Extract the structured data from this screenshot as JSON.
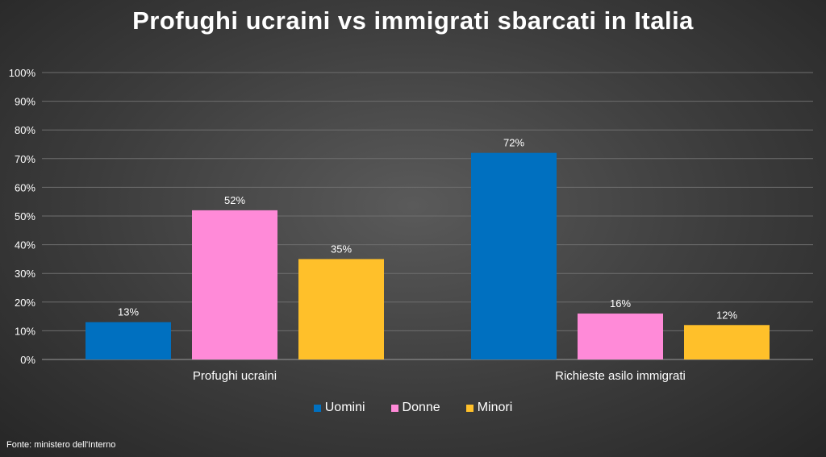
{
  "chart_data": {
    "type": "bar",
    "title": "Profughi ucraini vs immigrati sbarcati in Italia",
    "categories": [
      "Profughi ucraini",
      "Richieste asilo immigrati"
    ],
    "series": [
      {
        "name": "Uomini",
        "values": [
          13,
          72
        ],
        "labels": [
          "13%",
          "72%"
        ],
        "color": "#0070C0"
      },
      {
        "name": "Donne",
        "values": [
          52,
          16
        ],
        "labels": [
          "52%",
          "16%"
        ],
        "color": "#FF8AD8"
      },
      {
        "name": "Minori",
        "values": [
          35,
          12
        ],
        "labels": [
          "35%",
          "12%"
        ],
        "color": "#FFC02A"
      }
    ],
    "yticks": [
      "0%",
      "10%",
      "20%",
      "30%",
      "40%",
      "50%",
      "60%",
      "70%",
      "80%",
      "90%",
      "100%"
    ],
    "ylim": [
      0,
      100
    ],
    "grid": true,
    "legend_position": "bottom",
    "source": "Fonte: ministero dell'Interno"
  }
}
